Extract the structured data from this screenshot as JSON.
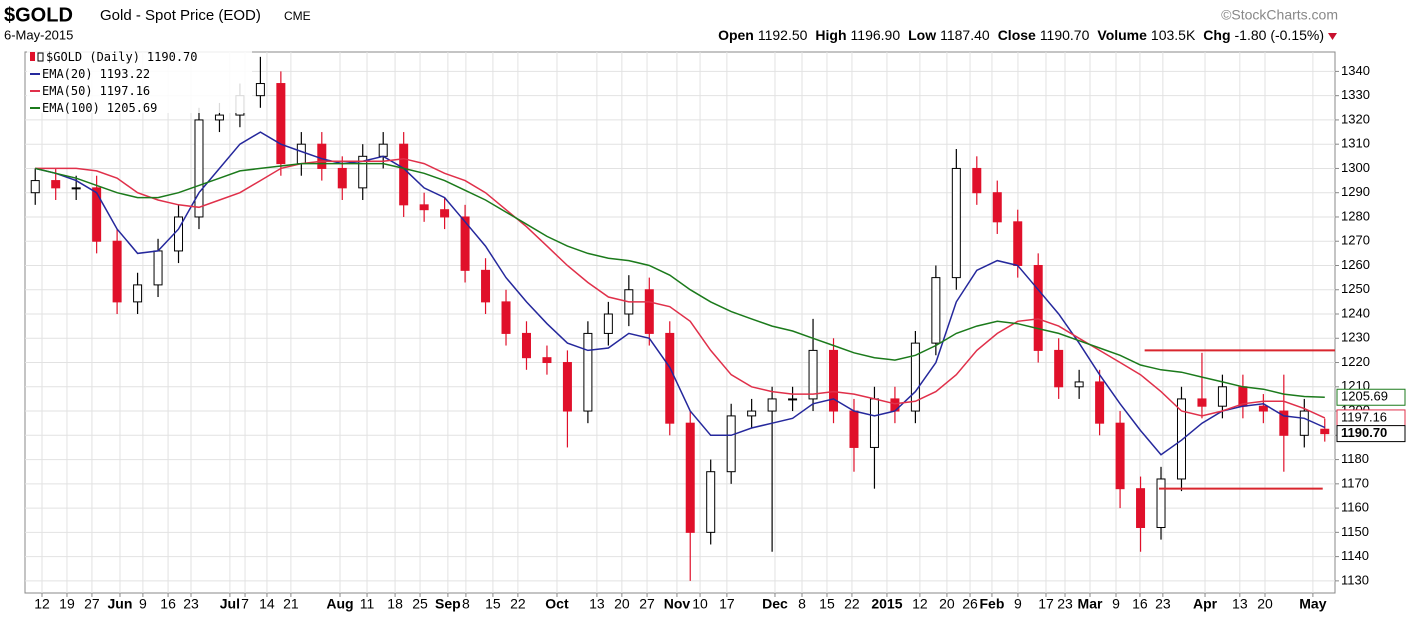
{
  "chart_data": {
    "type": "candlestick",
    "title": "$GOLD",
    "subtitle": "Gold - Spot Price (EOD)",
    "exchange": "CME",
    "date": "6-May-2015",
    "source": "©StockCharts.com",
    "quote": [
      {
        "label": "Open",
        "value": "1192.50"
      },
      {
        "label": "High",
        "value": "1196.90"
      },
      {
        "label": "Low",
        "value": "1187.40"
      },
      {
        "label": "Close",
        "value": "1190.70"
      },
      {
        "label": "Volume",
        "value": "103.5K"
      },
      {
        "label": "Chg",
        "value": "-1.80 (-0.15%)"
      }
    ],
    "grid": true,
    "xlim": [
      0,
      64
    ],
    "ylim": [
      1125,
      1348
    ],
    "yticks": [
      1130,
      1140,
      1150,
      1160,
      1170,
      1180,
      1190,
      1200,
      1210,
      1220,
      1230,
      1240,
      1250,
      1260,
      1270,
      1280,
      1290,
      1300,
      1310,
      1320,
      1330,
      1340
    ],
    "xticks": [
      {
        "value": 0.83,
        "label": "12"
      },
      {
        "value": 2.05,
        "label": "19"
      },
      {
        "value": 3.27,
        "label": "27"
      },
      {
        "value": 4.64,
        "label": "Jun"
      },
      {
        "value": 5.76,
        "label": "9"
      },
      {
        "value": 6.99,
        "label": "16"
      },
      {
        "value": 8.11,
        "label": "23"
      },
      {
        "value": 10.01,
        "label": "Jul"
      },
      {
        "value": 10.75,
        "label": "7"
      },
      {
        "value": 11.82,
        "label": "14"
      },
      {
        "value": 12.99,
        "label": "21"
      },
      {
        "value": 15.39,
        "label": "Aug"
      },
      {
        "value": 16.71,
        "label": "11"
      },
      {
        "value": 18.08,
        "label": "18"
      },
      {
        "value": 19.3,
        "label": "25"
      },
      {
        "value": 20.66,
        "label": "Sep"
      },
      {
        "value": 21.54,
        "label": "8"
      },
      {
        "value": 22.86,
        "label": "15"
      },
      {
        "value": 24.08,
        "label": "22"
      },
      {
        "value": 25.99,
        "label": "Oct"
      },
      {
        "value": 27.94,
        "label": "13"
      },
      {
        "value": 29.16,
        "label": "20"
      },
      {
        "value": 30.39,
        "label": "27"
      },
      {
        "value": 31.85,
        "label": "Nov"
      },
      {
        "value": 32.98,
        "label": "10"
      },
      {
        "value": 34.29,
        "label": "17"
      },
      {
        "value": 36.64,
        "label": "Dec"
      },
      {
        "value": 37.96,
        "label": "8"
      },
      {
        "value": 39.18,
        "label": "15"
      },
      {
        "value": 40.4,
        "label": "22"
      },
      {
        "value": 42.11,
        "label": "2015"
      },
      {
        "value": 43.72,
        "label": "12"
      },
      {
        "value": 45.04,
        "label": "20"
      },
      {
        "value": 46.17,
        "label": "26"
      },
      {
        "value": 47.24,
        "label": "Feb"
      },
      {
        "value": 48.51,
        "label": "9"
      },
      {
        "value": 49.88,
        "label": "17"
      },
      {
        "value": 50.81,
        "label": "23"
      },
      {
        "value": 52.03,
        "label": "Mar"
      },
      {
        "value": 53.3,
        "label": "9"
      },
      {
        "value": 54.47,
        "label": "16"
      },
      {
        "value": 55.59,
        "label": "23"
      },
      {
        "value": 57.65,
        "label": "Apr"
      },
      {
        "value": 59.35,
        "label": "13"
      },
      {
        "value": 60.58,
        "label": "20"
      },
      {
        "value": 62.92,
        "label": "May"
      }
    ],
    "price": {
      "name": "$GOLD (Daily)",
      "last_label": "1190.70",
      "up_color": "#000000",
      "down_color": "#e0102a",
      "open": [
        1290,
        1295,
        1292,
        1292,
        1270,
        1245,
        1252,
        1266,
        1280,
        1320,
        1322,
        1330,
        1335,
        1302,
        1310,
        1300,
        1292,
        1305,
        1310,
        1285,
        1283,
        1280,
        1258,
        1245,
        1232,
        1222,
        1220,
        1200,
        1232,
        1240,
        1250,
        1232,
        1195,
        1150,
        1175,
        1198,
        1200,
        1205,
        1205,
        1225,
        1200,
        1185,
        1205,
        1200,
        1228,
        1255,
        1300,
        1290,
        1278,
        1260,
        1225,
        1210,
        1212,
        1195,
        1168,
        1152,
        1172,
        1205,
        1202,
        1210,
        1202,
        1200,
        1190,
        1192.5
      ],
      "high": [
        1300,
        1300,
        1297,
        1297,
        1275,
        1257,
        1271,
        1285,
        1325,
        1327,
        1335,
        1346,
        1340,
        1315,
        1315,
        1305,
        1310,
        1315,
        1315,
        1290,
        1288,
        1285,
        1263,
        1250,
        1237,
        1227,
        1225,
        1237,
        1245,
        1256,
        1255,
        1237,
        1200,
        1180,
        1203,
        1205,
        1210,
        1210,
        1238,
        1230,
        1205,
        1210,
        1210,
        1233,
        1260,
        1308,
        1305,
        1295,
        1283,
        1265,
        1230,
        1217,
        1217,
        1200,
        1173,
        1177,
        1210,
        1224,
        1215,
        1215,
        1207,
        1215,
        1205,
        1196.9
      ],
      "low": [
        1285,
        1287,
        1287,
        1265,
        1240,
        1240,
        1247,
        1261,
        1275,
        1315,
        1317,
        1325,
        1297,
        1297,
        1295,
        1287,
        1287,
        1300,
        1280,
        1278,
        1275,
        1253,
        1240,
        1227,
        1217,
        1215,
        1185,
        1195,
        1227,
        1235,
        1227,
        1190,
        1130,
        1145,
        1170,
        1193,
        1142,
        1200,
        1200,
        1195,
        1175,
        1168,
        1195,
        1195,
        1223,
        1250,
        1285,
        1273,
        1255,
        1220,
        1205,
        1205,
        1190,
        1160,
        1142,
        1147,
        1167,
        1197,
        1197,
        1197,
        1195,
        1175,
        1185,
        1187.4
      ],
      "close": [
        1295,
        1292,
        1292,
        1270,
        1245,
        1252,
        1266,
        1280,
        1320,
        1322,
        1330,
        1335,
        1302,
        1310,
        1300,
        1292,
        1305,
        1310,
        1285,
        1283,
        1280,
        1258,
        1245,
        1232,
        1222,
        1220,
        1200,
        1232,
        1240,
        1250,
        1232,
        1195,
        1150,
        1175,
        1198,
        1200,
        1205,
        1205,
        1225,
        1200,
        1185,
        1205,
        1200,
        1228,
        1255,
        1300,
        1290,
        1278,
        1260,
        1225,
        1210,
        1212,
        1195,
        1168,
        1152,
        1172,
        1205,
        1202,
        1210,
        1202,
        1200,
        1190,
        1200,
        1190.7
      ]
    },
    "series": [
      {
        "name": "EMA(20)",
        "last_label": "1193.22",
        "color": "#25289c",
        "values": [
          1300,
          1298,
          1295,
          1290,
          1275,
          1265,
          1266,
          1275,
          1290,
          1300,
          1310,
          1315,
          1310,
          1307,
          1304,
          1302,
          1303,
          1305,
          1300,
          1292,
          1288,
          1278,
          1268,
          1255,
          1245,
          1236,
          1228,
          1225,
          1226,
          1232,
          1230,
          1218,
          1200,
          1190,
          1190,
          1193,
          1195,
          1197,
          1203,
          1205,
          1200,
          1198,
          1200,
          1208,
          1220,
          1245,
          1258,
          1262,
          1260,
          1250,
          1240,
          1228,
          1215,
          1203,
          1192,
          1182,
          1188,
          1195,
          1200,
          1202,
          1203,
          1198,
          1197,
          1193.22
        ]
      },
      {
        "name": "EMA(50)",
        "last_label": "1197.16",
        "color": "#e0304a",
        "values": [
          1300,
          1300,
          1300,
          1299,
          1296,
          1290,
          1287,
          1285,
          1284,
          1287,
          1290,
          1295,
          1300,
          1302,
          1303,
          1303,
          1303,
          1303,
          1304,
          1302,
          1298,
          1295,
          1290,
          1283,
          1276,
          1268,
          1260,
          1253,
          1247,
          1245,
          1245,
          1243,
          1237,
          1225,
          1215,
          1210,
          1208,
          1207,
          1207,
          1208,
          1207,
          1205,
          1203,
          1204,
          1208,
          1215,
          1225,
          1232,
          1237,
          1238,
          1235,
          1230,
          1225,
          1220,
          1215,
          1208,
          1200,
          1198,
          1200,
          1203,
          1204,
          1204,
          1201,
          1197.16
        ]
      },
      {
        "name": "EMA(100)",
        "last_label": "1205.69",
        "color": "#1b7a1b",
        "values": [
          1300,
          1298,
          1296,
          1293,
          1290,
          1288,
          1288,
          1290,
          1293,
          1296,
          1299,
          1300,
          1301,
          1302,
          1302,
          1302,
          1302,
          1302,
          1300,
          1298,
          1295,
          1291,
          1287,
          1282,
          1277,
          1272,
          1268,
          1265,
          1263,
          1262,
          1260,
          1256,
          1250,
          1245,
          1241,
          1238,
          1235,
          1233,
          1230,
          1227,
          1224,
          1222,
          1221,
          1223,
          1227,
          1232,
          1235,
          1237,
          1236,
          1234,
          1232,
          1229,
          1226,
          1223,
          1219,
          1217,
          1216,
          1214,
          1212,
          1210,
          1209,
          1207,
          1206,
          1205.69
        ]
      }
    ],
    "hlines": [
      {
        "value": 1225,
        "x": [
          54.7,
          64
        ],
        "color": "#d9262e"
      },
      {
        "value": 1168,
        "x": [
          55.4,
          63.4
        ],
        "color": "#d9262e"
      }
    ]
  }
}
